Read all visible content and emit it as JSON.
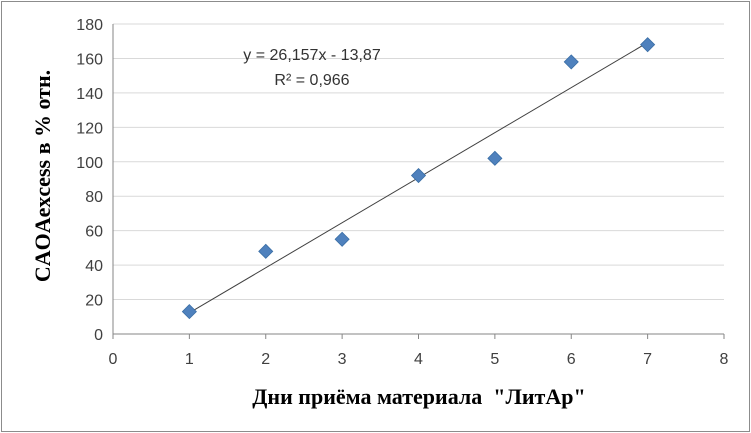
{
  "chart_data": {
    "type": "scatter",
    "title": "",
    "xlabel": "Дни приёма материала  \"ЛитАр\"",
    "ylabel": "CAOAexcess в % отн.",
    "xlim": [
      0,
      8
    ],
    "ylim": [
      0,
      180
    ],
    "x_ticks": [
      "0",
      "1",
      "2",
      "3",
      "4",
      "5",
      "6",
      "7",
      "8"
    ],
    "y_ticks": [
      "0",
      "20",
      "40",
      "60",
      "80",
      "100",
      "120",
      "140",
      "160",
      "180"
    ],
    "grid": true,
    "legend": "none",
    "series": [
      {
        "x": [
          1,
          2,
          3,
          4,
          5,
          6,
          7
        ],
        "y": [
          13,
          48,
          55,
          92,
          102,
          158,
          168
        ],
        "marker": "diamond",
        "color": "#4f81bd"
      }
    ],
    "trendline": {
      "type": "linear",
      "slope": 26.157,
      "intercept": -13.87,
      "x_range": [
        1,
        7
      ],
      "equation": "y = 26,157x - 13,87",
      "r_squared": "R² = 0,966",
      "color": "#404040"
    },
    "colors": {
      "grid": "#d9d9d9",
      "axis": "#868686",
      "marker": "#4f81bd"
    }
  }
}
